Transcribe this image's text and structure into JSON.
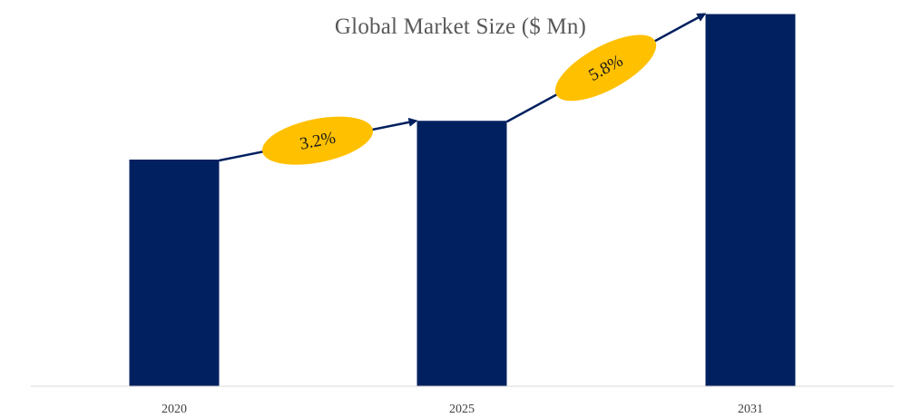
{
  "chart_data": {
    "type": "bar",
    "title": "Global Market Size ($ Mn)",
    "categories": [
      "2020",
      "2025",
      "2031"
    ],
    "values": [
      100,
      117.1,
      164.2
    ],
    "ylim": [
      0,
      170
    ],
    "xlabel": "",
    "ylabel": "",
    "grid": false,
    "legend": "none",
    "annotations": [
      {
        "from": "2020",
        "to": "2025",
        "label": "3.2%"
      },
      {
        "from": "2025",
        "to": "2031",
        "label": "5.8%"
      }
    ],
    "colors": {
      "bar": "#002060",
      "arrow": "#002060",
      "badge": "#FFC000",
      "axis": "#d9d9d9"
    }
  }
}
